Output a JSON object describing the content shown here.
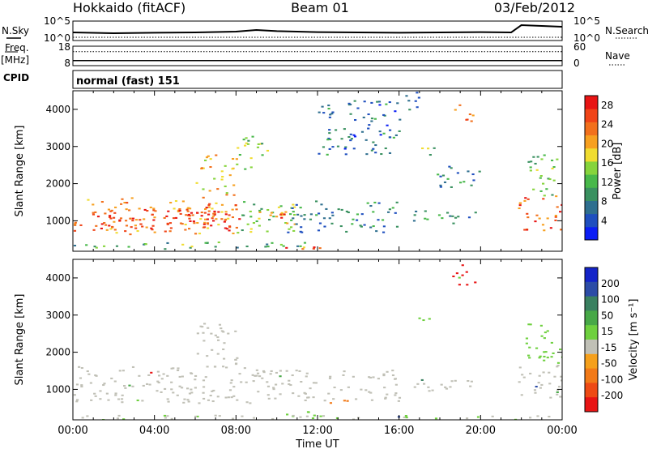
{
  "header": {
    "station": "Hokkaido (fitACF)",
    "beam": "Beam 01",
    "date": "03/Feb/2012"
  },
  "labels": {
    "nsky": "N.Sky",
    "freq": "Freq.",
    "mhz": "[MHz]",
    "cpid": "CPID",
    "nsearch": "N.Search",
    "nave": "Nave",
    "cpid_value": "normal (fast) 151"
  },
  "chart_data": [
    {
      "type": "line",
      "panel": "noise",
      "left_ticks": [
        "10^5",
        "10^0"
      ],
      "right_ticks": [
        "10^5",
        "10^0"
      ],
      "series": [
        {
          "name": "N.Sky",
          "x": [
            0,
            2,
            4,
            6,
            8,
            9,
            10,
            12,
            14,
            16,
            18,
            20,
            21.5,
            22,
            23,
            24
          ],
          "values": [
            0.4,
            0.35,
            0.38,
            0.4,
            0.45,
            0.55,
            0.48,
            0.42,
            0.4,
            0.38,
            0.4,
            0.42,
            0.4,
            0.85,
            0.8,
            0.75
          ]
        },
        {
          "name": "N.Search",
          "x": [
            0,
            24
          ],
          "values": [
            0.1,
            0.1
          ]
        }
      ]
    },
    {
      "type": "line",
      "panel": "frequency",
      "left_ticks": [
        "18",
        "8"
      ],
      "right_ticks": [
        "60",
        "0"
      ],
      "series": [
        {
          "name": "Freq.",
          "x": [
            0,
            24
          ],
          "values": [
            10.6,
            10.6
          ]
        },
        {
          "name": "Nave",
          "x": [
            0,
            24
          ],
          "values": [
            43,
            43
          ]
        }
      ]
    },
    {
      "type": "heatmap",
      "panel": "power",
      "xlabel": "",
      "ylabel": "Slant Range [km]",
      "xlim": [
        0,
        24
      ],
      "ylim": [
        180,
        4500
      ],
      "y_ticks": [
        1000,
        2000,
        3000,
        4000
      ],
      "colorbar": {
        "label": "Power [dB]",
        "ticks": [
          4,
          8,
          12,
          16,
          20,
          24,
          28
        ],
        "range": [
          0,
          30
        ],
        "colors": [
          "#0b1ef5",
          "#1f4fbf",
          "#2f6f8f",
          "#3a9160",
          "#48b84a",
          "#86d43c",
          "#f0dc30",
          "#f7a020",
          "#f2701c",
          "#f04418",
          "#e81414"
        ]
      },
      "regions": [
        {
          "t": [
            0,
            8
          ],
          "r": [
            650,
            1650
          ],
          "level": 22
        },
        {
          "t": [
            1,
            7
          ],
          "r": [
            800,
            1400
          ],
          "level": 26
        },
        {
          "t": [
            4.5,
            8.2
          ],
          "r": [
            750,
            1300
          ],
          "level": 28
        },
        {
          "t": [
            6,
            8
          ],
          "r": [
            1700,
            2800
          ],
          "level": 18
        },
        {
          "t": [
            8,
            11
          ],
          "r": [
            700,
            1600
          ],
          "level": 14
        },
        {
          "t": [
            9,
            11
          ],
          "r": [
            900,
            1300
          ],
          "level": 24
        },
        {
          "t": [
            10.5,
            16
          ],
          "r": [
            700,
            1550
          ],
          "level": 8
        },
        {
          "t": [
            16.5,
            20
          ],
          "r": [
            950,
            1300
          ],
          "level": 9
        },
        {
          "t": [
            10.2,
            12.2
          ],
          "r": [
            220,
            420
          ],
          "level": 28
        },
        {
          "t": [
            0,
            12
          ],
          "r": [
            250,
            450
          ],
          "level": 12
        },
        {
          "t": [
            16.8,
            17.8
          ],
          "r": [
            2700,
            3000
          ],
          "level": 14
        },
        {
          "t": [
            17.8,
            20
          ],
          "r": [
            1900,
            2500
          ],
          "level": 8
        },
        {
          "t": [
            18.7,
            19.6
          ],
          "r": [
            3700,
            4300
          ],
          "level": 22
        },
        {
          "t": [
            16,
            17
          ],
          "r": [
            4000,
            4500
          ],
          "level": 6
        },
        {
          "t": [
            21.8,
            24
          ],
          "r": [
            750,
            1700
          ],
          "level": 24
        },
        {
          "t": [
            22.2,
            24
          ],
          "r": [
            1700,
            2800
          ],
          "level": 14
        },
        {
          "t": [
            8,
            9.5
          ],
          "r": [
            2400,
            3300
          ],
          "level": 14
        },
        {
          "t": [
            12,
            16
          ],
          "r": [
            2800,
            4300
          ],
          "level": 7
        }
      ]
    },
    {
      "type": "heatmap",
      "panel": "velocity",
      "xlabel": "Time UT",
      "ylabel": "Slant Range [km]",
      "xlim": [
        0,
        24
      ],
      "ylim": [
        180,
        4500
      ],
      "x_ticks": [
        "00:00",
        "04:00",
        "08:00",
        "12:00",
        "16:00",
        "20:00",
        "00:00"
      ],
      "y_ticks": [
        1000,
        2000,
        3000,
        4000
      ],
      "colorbar": {
        "label": "Velocity [m s⁻¹]",
        "ticks": [
          200,
          100,
          50,
          15,
          -15,
          -50,
          -100,
          -200
        ],
        "colors": [
          "#1424c8",
          "#2c4ca6",
          "#3a8060",
          "#47a847",
          "#6ed03e",
          "#c0c0b6",
          "#f5a01c",
          "#f27a18",
          "#ee4a14",
          "#e81414"
        ]
      },
      "regions": [
        {
          "t": [
            0,
            9
          ],
          "r": [
            650,
            1650
          ],
          "velocity": 0
        },
        {
          "t": [
            9,
            16
          ],
          "r": [
            700,
            1550
          ],
          "velocity": 0
        },
        {
          "t": [
            16.5,
            20
          ],
          "r": [
            950,
            1300
          ],
          "velocity": 0
        },
        {
          "t": [
            21.8,
            24
          ],
          "r": [
            750,
            1700
          ],
          "velocity": 0
        },
        {
          "t": [
            6,
            8
          ],
          "r": [
            1700,
            2800
          ],
          "velocity": 0
        },
        {
          "t": [
            10,
            12.2
          ],
          "r": [
            220,
            420
          ],
          "velocity": 30
        },
        {
          "t": [
            16.8,
            17.8
          ],
          "r": [
            2750,
            3000
          ],
          "velocity": 40
        },
        {
          "t": [
            18.6,
            19.7
          ],
          "r": [
            3800,
            4400
          ],
          "velocity": -200
        },
        {
          "t": [
            22.2,
            24
          ],
          "r": [
            1700,
            2800
          ],
          "velocity": 40
        },
        {
          "t": [
            12.5,
            13.5
          ],
          "r": [
            600,
            800
          ],
          "velocity": -60
        },
        {
          "t": [
            0,
            24
          ],
          "r": [
            200,
            320
          ],
          "velocity": 10
        }
      ]
    }
  ]
}
